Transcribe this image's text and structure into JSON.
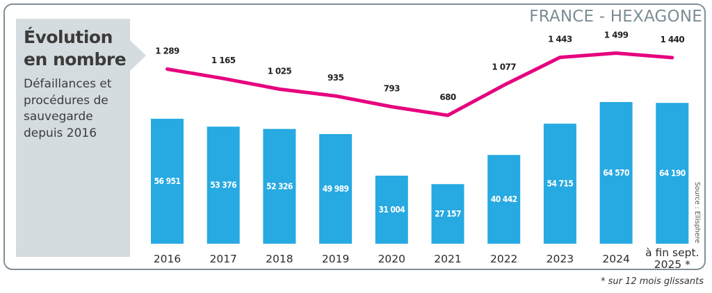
{
  "header": {
    "title_line1": "Évolution",
    "title_line2": "en nombre",
    "subtitle": "Défaillances et procédures de sauvegarde depuis 2016",
    "region": "FRANCE - HEXAGONE"
  },
  "source": "Source : Ellisphere",
  "footnote": "* sur 12 mois glissants",
  "colors": {
    "bars": "#27a9e1",
    "line": "#e6007e",
    "panel": "#d5dce0",
    "border": "#7e8e97"
  },
  "chart_data": {
    "type": "bar",
    "title": "Évolution en nombre",
    "subtitle": "Défaillances et procédures de sauvegarde depuis 2016",
    "categories": [
      "2016",
      "2017",
      "2018",
      "2019",
      "2020",
      "2021",
      "2022",
      "2023",
      "2024",
      "à fin sept. 2025 *"
    ],
    "category_lines": [
      [
        "2016"
      ],
      [
        "2017"
      ],
      [
        "2018"
      ],
      [
        "2019"
      ],
      [
        "2020"
      ],
      [
        "2021"
      ],
      [
        "2022"
      ],
      [
        "2023"
      ],
      [
        "2024"
      ],
      [
        "à fin sept.",
        "2025 *"
      ]
    ],
    "series": [
      {
        "name": "Défaillances",
        "type": "bar",
        "values": [
          56951,
          53376,
          52326,
          49989,
          31004,
          27157,
          40442,
          54715,
          64570,
          64190
        ],
        "labels": [
          "56 951",
          "53 376",
          "52 326",
          "49 989",
          "31 004",
          "27 157",
          "40 442",
          "54 715",
          "64 570",
          "64 190"
        ]
      },
      {
        "name": "Procédures de sauvegarde",
        "type": "line",
        "values": [
          1289,
          1165,
          1025,
          935,
          793,
          680,
          1077,
          1443,
          1499,
          1440
        ],
        "labels": [
          "1 289",
          "1 165",
          "1 025",
          "935",
          "793",
          "680",
          "1 077",
          "1 443",
          "1 499",
          "1 440"
        ]
      }
    ],
    "xlabel": "",
    "ylabel": "",
    "grid": false,
    "legend": "none"
  }
}
